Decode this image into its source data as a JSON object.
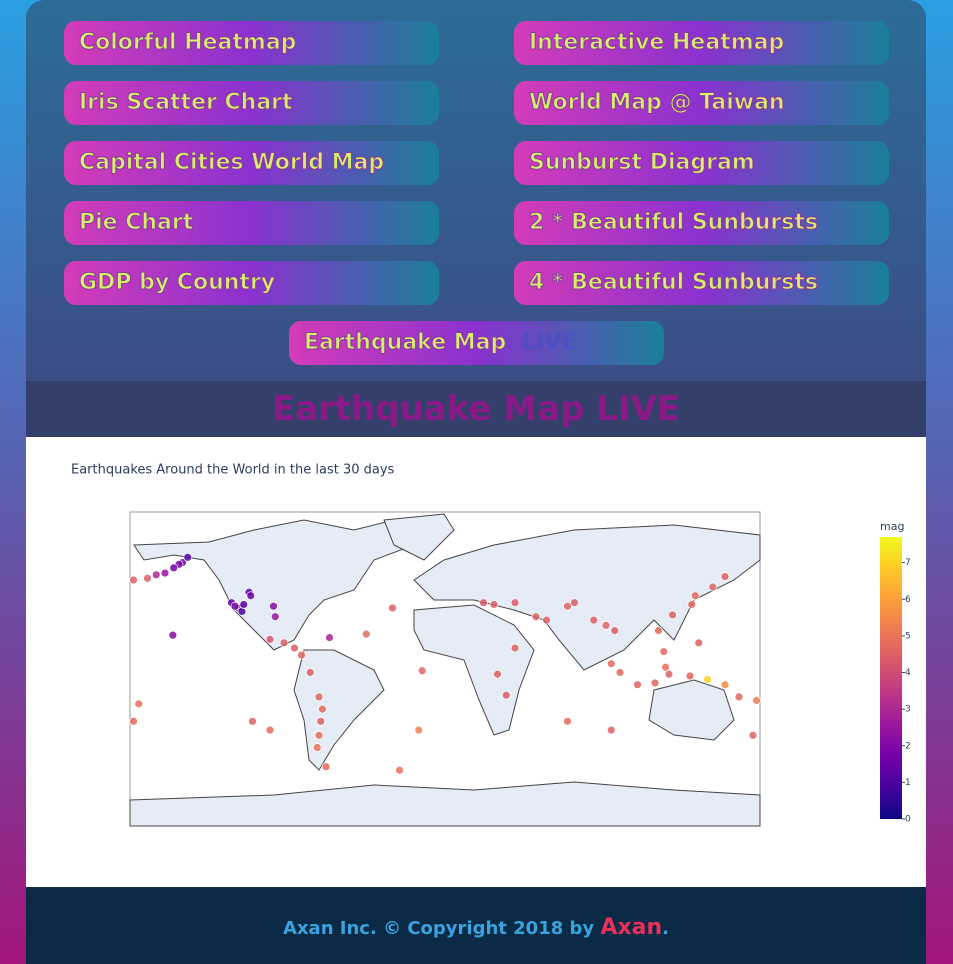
{
  "nav": {
    "buttons": [
      "Colorful Heatmap",
      "Interactive Heatmap",
      "Iris Scatter Chart",
      "World Map @ Taiwan",
      "Capital Cities World Map",
      "Sunburst Diagram",
      "Pie Chart",
      "2 * Beautiful Sunbursts",
      "GDP by Country",
      "4 * Beautiful Sunbursts"
    ],
    "active": {
      "label": "Earthquake Map",
      "badge": "LIVE"
    }
  },
  "heading": "Earthquake Map LIVE",
  "chart_data": {
    "type": "scattergeo",
    "title": "Earthquakes Around the World in the last 30 days",
    "xlim": [
      -180,
      180
    ],
    "ylim": [
      -90,
      90
    ],
    "x": [
      -150,
      -152,
      -160,
      -170,
      -178,
      -147,
      -155,
      -165,
      -118,
      -122,
      -116,
      -120,
      -115,
      -112,
      -111,
      -98,
      -97,
      -155.5,
      -66,
      -100,
      -92,
      -86,
      -82,
      -77,
      -72,
      -70,
      -71,
      -72,
      -73,
      -68,
      -26,
      -30,
      -45,
      -13,
      -15,
      22,
      28,
      40,
      52,
      58,
      70,
      74,
      30,
      35,
      40,
      85,
      92,
      97,
      95,
      100,
      110,
      120,
      126,
      128,
      140,
      125,
      122,
      130,
      141,
      143,
      145,
      153,
      160,
      168,
      178,
      -175,
      -178,
      176,
      150,
      160,
      -110,
      -100,
      95,
      70
    ],
    "y": [
      61,
      60,
      55,
      52,
      51,
      64,
      58,
      54,
      35,
      38,
      33,
      36,
      37,
      44,
      42,
      36,
      30,
      19.4,
      18,
      17,
      15,
      12,
      8,
      -2,
      -16,
      -23,
      -30,
      -38,
      -45,
      -56,
      -58,
      35,
      20,
      -1,
      -35,
      38,
      37,
      38,
      30,
      28,
      36,
      38,
      -3,
      -15,
      12,
      28,
      25,
      22,
      3,
      -2,
      -9,
      -8,
      1,
      -3,
      -4,
      10,
      22,
      31,
      37,
      42,
      15,
      47,
      53,
      -16,
      -18,
      -20,
      -30,
      -38,
      -6,
      -9,
      -30,
      -35,
      -35,
      -30
    ],
    "values": [
      1.5,
      2.0,
      2.5,
      4.4,
      4.5,
      1.2,
      1.8,
      3.0,
      1.2,
      1.5,
      0.9,
      2.0,
      1.1,
      1.4,
      1.6,
      2.2,
      2.5,
      2.1,
      3.0,
      4.3,
      4.5,
      4.4,
      4.6,
      4.5,
      4.6,
      4.7,
      4.5,
      4.8,
      5.0,
      4.6,
      4.9,
      4.5,
      4.7,
      4.6,
      5.3,
      4.3,
      4.5,
      4.4,
      4.6,
      4.5,
      4.6,
      4.4,
      4.5,
      4.4,
      4.5,
      4.5,
      4.6,
      4.5,
      4.8,
      4.7,
      4.5,
      4.6,
      4.9,
      4.5,
      4.6,
      4.7,
      4.8,
      4.5,
      4.6,
      4.7,
      4.5,
      4.6,
      4.5,
      4.8,
      5.2,
      4.9,
      4.7,
      4.6,
      7.0,
      5.5,
      4.5,
      4.7,
      4.6,
      4.8
    ],
    "colorbar": {
      "title": "mag",
      "lim": [
        0,
        7.7
      ],
      "ticks": [
        0,
        1,
        2,
        3,
        4,
        5,
        6,
        7
      ]
    },
    "colorscale": [
      "#0d0887",
      "#46039f",
      "#7201a8",
      "#9c179e",
      "#bd3786",
      "#d8576b",
      "#ed7953",
      "#fb9f3a",
      "#fdca26",
      "#f0f921"
    ]
  },
  "footer": {
    "company": "Axan Inc.",
    "copyright": "© Copyright 2018 by",
    "brand": "Axan",
    "end": "."
  }
}
